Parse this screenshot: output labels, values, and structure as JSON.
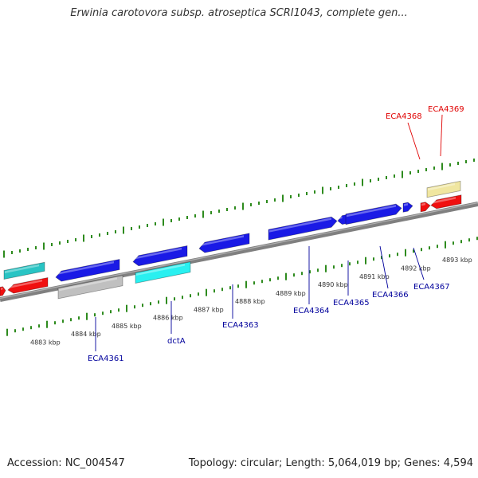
{
  "header": {
    "title": "Erwinia carotovora subsp. atroseptica SCRI1043, complete gen..."
  },
  "footer": {
    "accession": "Accession: NC_004547",
    "summary": "Topology: circular; Length: 5,064,019 bp; Genes: 4,594"
  },
  "map": {
    "colors": {
      "backbone": "#808080",
      "tick": "#2e8b1e",
      "gene_label_blue": "#00009c",
      "gene_label_red": "#e00000",
      "forward_blue": "#1a1ae6",
      "forward_cyan": "#29c4c4",
      "bright_cyan": "#29f0f0",
      "gray": "#c0c0c0",
      "red": "#f01010",
      "yellow": "#f0e6a0"
    },
    "scale_labels": [
      "4883 kbp",
      "4884 kbp",
      "4885 kbp",
      "4886 kbp",
      "4887 kbp",
      "4888 kbp",
      "4889 kbp",
      "4890 kbp",
      "4891 kbp",
      "4892 kbp",
      "4893 kbp"
    ],
    "gene_labels": [
      "ECA4361",
      "dctA",
      "ECA4363",
      "ECA4364",
      "ECA4365",
      "ECA4366",
      "ECA4367",
      "ECA4368",
      "ECA4369"
    ]
  }
}
